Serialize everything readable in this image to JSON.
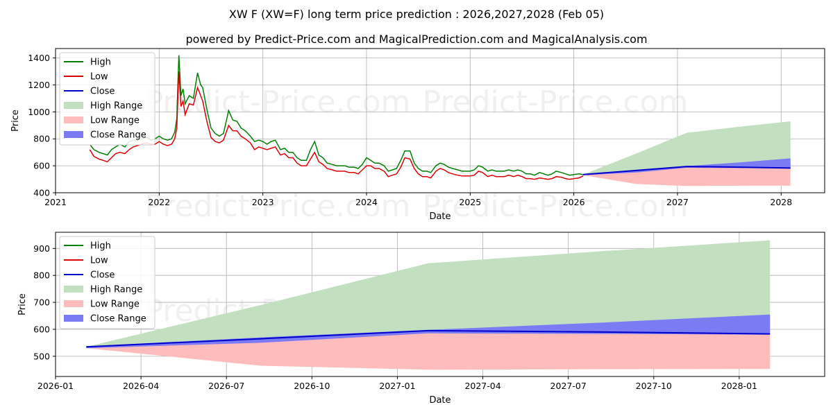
{
  "title": "XW F (XW=F) long term price prediction : 2026,2027,2028 (Feb 05)",
  "subtitle": "powered by Predict-Price.com and MagicalPrediction.com and MagicalAnalysis.com",
  "watermark": "Predict-Price.com",
  "colors": {
    "high": "#008000",
    "low": "#dd0000",
    "close": "#0000cc",
    "high_range": "#c2dfc0",
    "low_range": "#ffbcbc",
    "close_range": "#7b7bf4",
    "grid": "#b0b0b0"
  },
  "chart_data": [
    {
      "type": "line",
      "title": "XW F (XW=F) long term price prediction : 2026,2027,2028 (Feb 05)",
      "xlabel": "Date",
      "ylabel": "Price",
      "xlim": [
        2021.0,
        2028.42
      ],
      "ylim": [
        400,
        1470
      ],
      "xticks": [
        2021,
        2022,
        2023,
        2024,
        2025,
        2026,
        2027,
        2028
      ],
      "xtick_labels": [
        "2021",
        "2022",
        "2023",
        "2024",
        "2025",
        "2026",
        "2027",
        "2028"
      ],
      "yticks": [
        400,
        600,
        800,
        1000,
        1200,
        1400
      ],
      "ytick_labels": [
        "400",
        "600",
        "800",
        "1000",
        "1200",
        "1400"
      ],
      "grid": true,
      "legend": "top-left",
      "legend_entries": [
        "High",
        "Low",
        "Close",
        "High Range",
        "Low Range",
        "Close Range"
      ],
      "history": {
        "x": [
          2021.33,
          2021.37,
          2021.42,
          2021.46,
          2021.5,
          2021.54,
          2021.58,
          2021.62,
          2021.67,
          2021.71,
          2021.75,
          2021.79,
          2021.83,
          2021.88,
          2021.92,
          2021.96,
          2022.0,
          2022.04,
          2022.08,
          2022.12,
          2022.15,
          2022.17,
          2022.18,
          2022.19,
          2022.21,
          2022.23,
          2022.25,
          2022.29,
          2022.33,
          2022.37,
          2022.4,
          2022.42,
          2022.46,
          2022.5,
          2022.54,
          2022.58,
          2022.62,
          2022.67,
          2022.71,
          2022.75,
          2022.79,
          2022.83,
          2022.88,
          2022.92,
          2022.96,
          2023.0,
          2023.04,
          2023.08,
          2023.12,
          2023.17,
          2023.21,
          2023.25,
          2023.29,
          2023.33,
          2023.37,
          2023.42,
          2023.46,
          2023.5,
          2023.54,
          2023.58,
          2023.62,
          2023.67,
          2023.71,
          2023.75,
          2023.79,
          2023.83,
          2023.88,
          2023.92,
          2023.96,
          2024.0,
          2024.04,
          2024.08,
          2024.12,
          2024.17,
          2024.21,
          2024.25,
          2024.29,
          2024.33,
          2024.37,
          2024.42,
          2024.46,
          2024.5,
          2024.54,
          2024.58,
          2024.62,
          2024.67,
          2024.71,
          2024.75,
          2024.79,
          2024.83,
          2024.88,
          2024.92,
          2024.96,
          2025.0,
          2025.04,
          2025.08,
          2025.12,
          2025.17,
          2025.21,
          2025.25,
          2025.29,
          2025.33,
          2025.37,
          2025.42,
          2025.46,
          2025.5,
          2025.54,
          2025.58,
          2025.62,
          2025.67,
          2025.71,
          2025.75,
          2025.79,
          2025.83,
          2025.88,
          2025.92,
          2025.96,
          2026.0,
          2026.05,
          2026.09
        ],
        "high": [
          760,
          720,
          700,
          690,
          680,
          720,
          740,
          760,
          740,
          780,
          790,
          790,
          800,
          810,
          790,
          800,
          820,
          800,
          790,
          800,
          850,
          950,
          1200,
          1420,
          1120,
          1170,
          1060,
          1120,
          1100,
          1290,
          1200,
          1180,
          1020,
          880,
          840,
          820,
          840,
          1010,
          940,
          930,
          880,
          860,
          820,
          780,
          790,
          780,
          760,
          780,
          790,
          720,
          730,
          700,
          700,
          660,
          640,
          640,
          720,
          780,
          680,
          660,
          620,
          610,
          600,
          600,
          600,
          590,
          590,
          580,
          610,
          660,
          640,
          620,
          620,
          600,
          560,
          570,
          580,
          640,
          710,
          710,
          620,
          580,
          560,
          560,
          550,
          600,
          620,
          610,
          590,
          580,
          570,
          560,
          560,
          560,
          570,
          600,
          590,
          560,
          570,
          560,
          560,
          560,
          570,
          560,
          570,
          560,
          540,
          540,
          530,
          550,
          540,
          530,
          540,
          560,
          550,
          540,
          530,
          535,
          540,
          535
        ],
        "low": [
          720,
          670,
          650,
          640,
          630,
          660,
          690,
          700,
          690,
          720,
          740,
          750,
          760,
          770,
          760,
          760,
          780,
          760,
          750,
          760,
          800,
          880,
          1100,
          1300,
          1040,
          1080,
          980,
          1060,
          1050,
          1180,
          1120,
          1080,
          930,
          810,
          780,
          770,
          790,
          900,
          860,
          860,
          820,
          800,
          770,
          720,
          740,
          730,
          720,
          730,
          740,
          680,
          690,
          660,
          660,
          620,
          600,
          600,
          650,
          700,
          630,
          610,
          580,
          570,
          560,
          560,
          560,
          550,
          550,
          540,
          570,
          600,
          600,
          580,
          580,
          560,
          520,
          530,
          540,
          590,
          660,
          650,
          580,
          540,
          520,
          520,
          510,
          560,
          580,
          570,
          550,
          540,
          530,
          525,
          525,
          525,
          530,
          560,
          550,
          520,
          530,
          520,
          520,
          520,
          530,
          520,
          530,
          520,
          505,
          505,
          500,
          510,
          505,
          500,
          505,
          520,
          515,
          505,
          500,
          505,
          510,
          525
        ]
      },
      "forecast": {
        "x": [
          2026.09,
          2026.6,
          2027.09,
          2027.6,
          2028.09
        ],
        "close": [
          535,
          565,
          595,
          590,
          583
        ],
        "high_range": [
          535,
          690,
          845,
          890,
          930
        ],
        "low_range": [
          530,
          465,
          450,
          452,
          453
        ],
        "close_range_upper": [
          537,
          570,
          598,
          625,
          655
        ],
        "close_range_lower": [
          530,
          550,
          585,
          583,
          580
        ]
      }
    },
    {
      "type": "line",
      "xlabel": "Date",
      "ylabel": "Price",
      "xlim": [
        2026.0,
        2028.25
      ],
      "ylim": [
        425,
        960
      ],
      "xticks": [
        2026.0,
        2026.25,
        2026.5,
        2026.75,
        2027.0,
        2027.25,
        2027.5,
        2027.75,
        2028.0
      ],
      "xtick_labels": [
        "2026-01",
        "2026-04",
        "2026-07",
        "2026-10",
        "2027-01",
        "2027-04",
        "2027-07",
        "2027-10",
        "2028-01"
      ],
      "yticks": [
        500,
        600,
        700,
        800,
        900
      ],
      "ytick_labels": [
        "500",
        "600",
        "700",
        "800",
        "900"
      ],
      "grid": true,
      "legend": "top-left",
      "legend_entries": [
        "High",
        "Low",
        "Close",
        "High Range",
        "Low Range",
        "Close Range"
      ],
      "forecast": {
        "x": [
          2026.09,
          2026.6,
          2027.09,
          2027.6,
          2028.09
        ],
        "close": [
          535,
          565,
          595,
          590,
          583
        ],
        "high_range": [
          535,
          690,
          845,
          890,
          930
        ],
        "low_range": [
          530,
          465,
          450,
          452,
          453
        ],
        "close_range_upper": [
          537,
          570,
          598,
          625,
          655
        ],
        "close_range_lower": [
          530,
          550,
          585,
          583,
          580
        ]
      }
    }
  ]
}
